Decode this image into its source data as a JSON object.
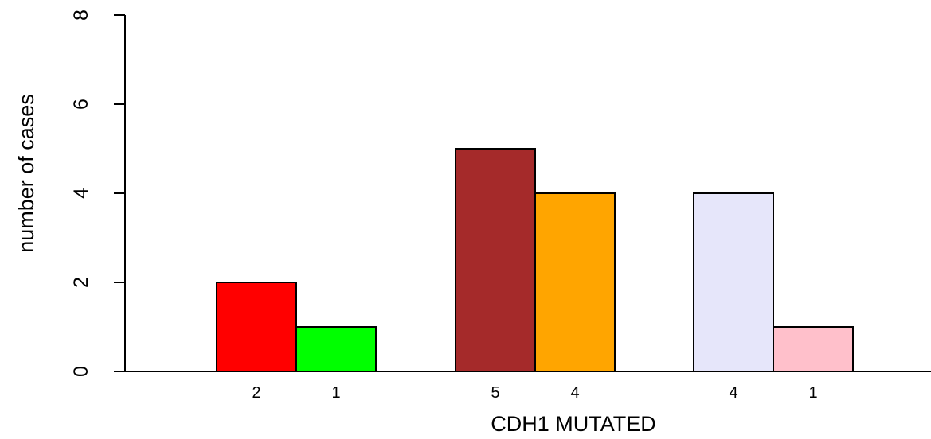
{
  "chart_data": {
    "type": "bar",
    "xlabel": "CDH1 MUTATED",
    "ylabel": "number of cases",
    "ylim": [
      0,
      8
    ],
    "yticks": [
      "0",
      "2",
      "4",
      "6",
      "8"
    ],
    "grid": false,
    "bars": [
      {
        "value": 2,
        "label": "2",
        "color": "#ff0000"
      },
      {
        "value": 1,
        "label": "1",
        "color": "#00ff00"
      },
      {
        "value": 5,
        "label": "5",
        "color": "#a52a2a"
      },
      {
        "value": 4,
        "label": "4",
        "color": "#ffa500"
      },
      {
        "value": 4,
        "label": "4",
        "color": "#e6e6fa"
      },
      {
        "value": 1,
        "label": "1",
        "color": "#ffc0cb"
      }
    ]
  }
}
